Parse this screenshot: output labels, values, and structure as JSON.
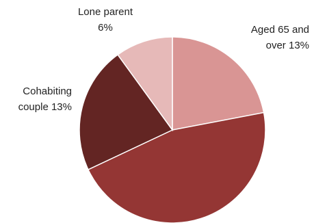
{
  "chart_data": {
    "type": "pie",
    "title": "",
    "start_angle_deg": 0,
    "direction": "clockwise",
    "slices": [
      {
        "label": "Aged 65 and over 13%",
        "value": 22,
        "color": "#d99594"
      },
      {
        "label": "",
        "value": 46,
        "color": "#943634"
      },
      {
        "label": "Cohabiting couple 13%",
        "value": 22,
        "color": "#632523"
      },
      {
        "label": "Lone parent 6%",
        "value": 10,
        "color": "#e6b9b8"
      }
    ],
    "data_labels": [
      {
        "lines": [
          "Aged 65 and",
          "over 13%"
        ],
        "slice_index": 0,
        "anchor": "end"
      },
      {
        "lines": [
          "Cohabiting",
          "couple 13%"
        ],
        "slice_index": 2,
        "anchor": "end"
      },
      {
        "lines": [
          "Lone parent",
          "6%"
        ],
        "slice_index": 3,
        "anchor": "middle"
      }
    ]
  }
}
